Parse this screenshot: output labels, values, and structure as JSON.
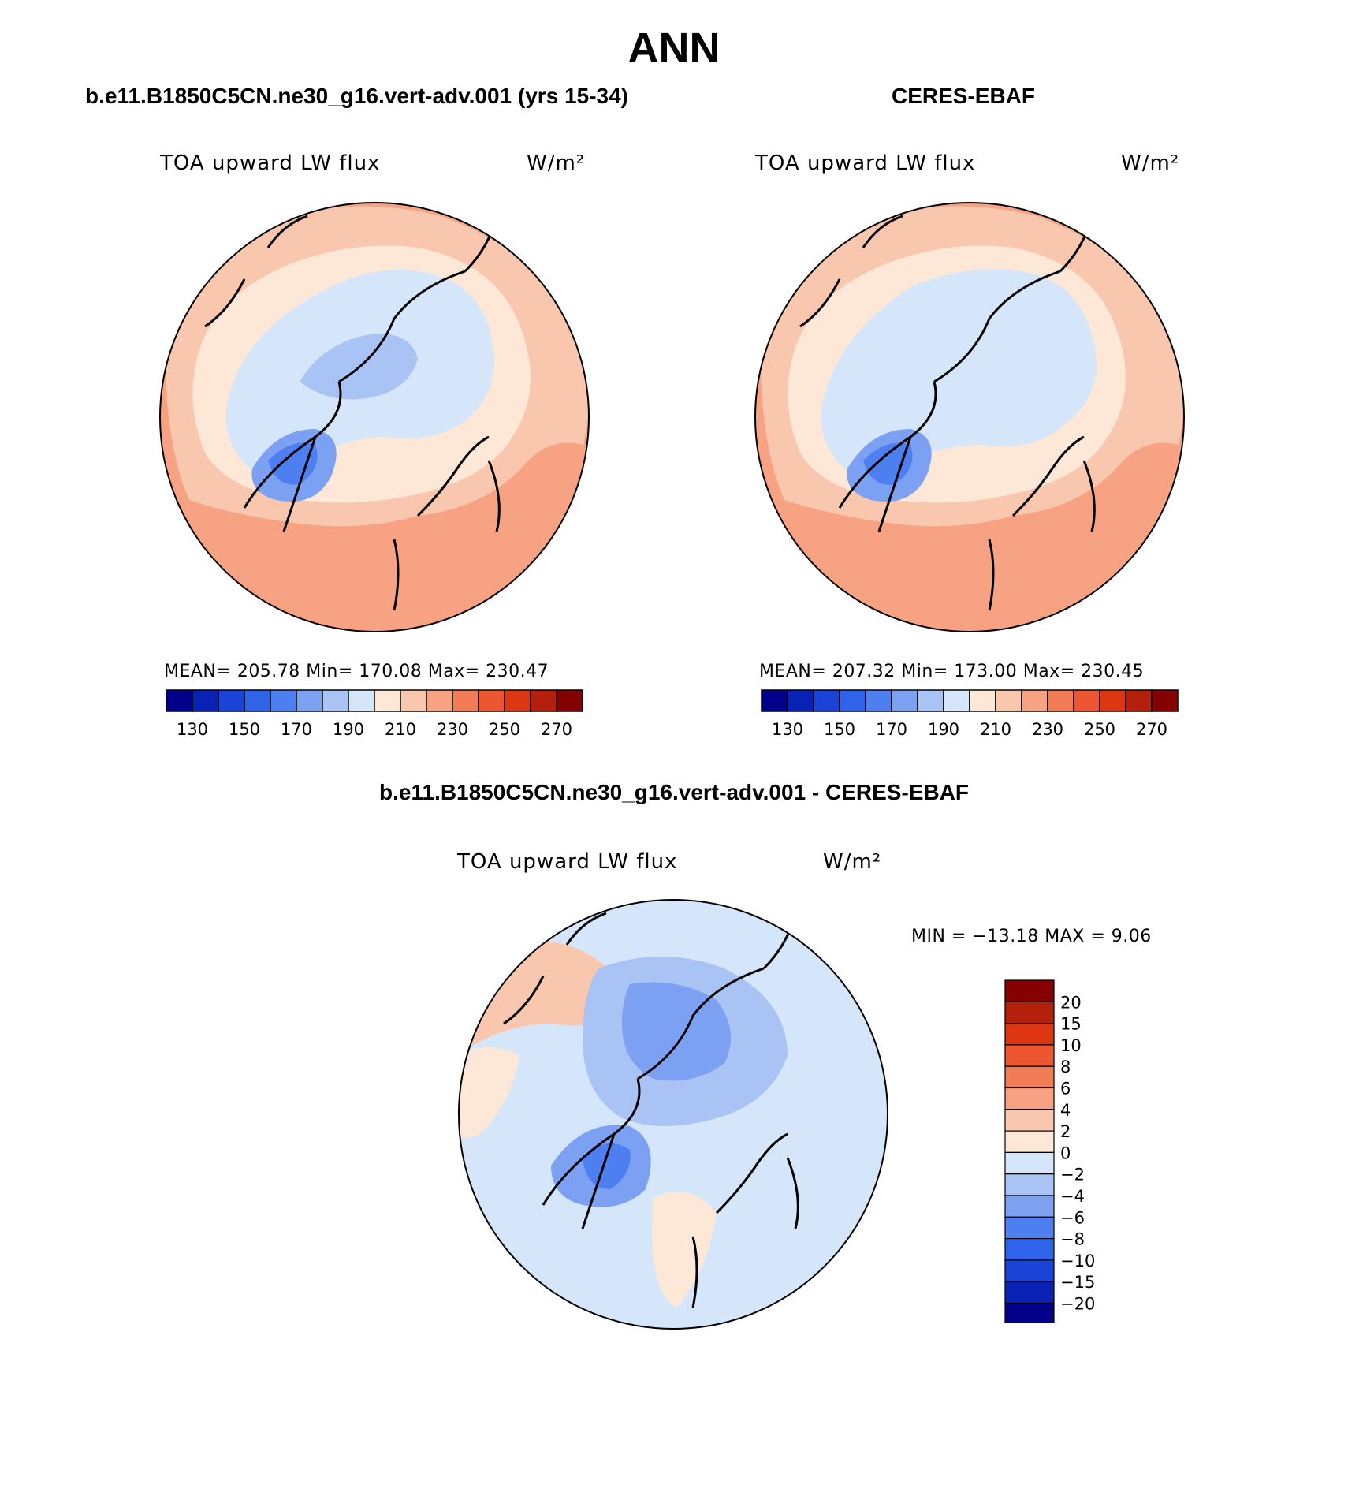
{
  "figure": {
    "title": "ANN",
    "panel_left_title": "b.e11.B1850C5CN.ne30_g16.vert-adv.001 (yrs 15-34)",
    "panel_right_title": "CERES-EBAF",
    "panel_diff_title": "b.e11.B1850C5CN.ne30_g16.vert-adv.001 - CERES-EBAF"
  },
  "panels": {
    "left": {
      "field": "TOA upward LW flux",
      "units": "W/m²",
      "mean": "205.78",
      "min": "170.08",
      "max": "230.47",
      "stats_text": "MEAN= 205.78   Min= 170.08   Max= 230.47"
    },
    "right": {
      "field": "TOA upward LW flux",
      "units": "W/m²",
      "mean": "207.32",
      "min": "173.00",
      "max": "230.45",
      "stats_text": "MEAN= 207.32   Min= 173.00   Max= 230.45"
    },
    "diff": {
      "field": "TOA upward LW flux",
      "units": "W/m²",
      "stats_text": "MIN = −13.18 MAX =    9.06"
    }
  },
  "colorbar_abs": {
    "colors": [
      "#00008b",
      "#0a21b5",
      "#1a44d8",
      "#2f63ea",
      "#4d7ff0",
      "#7da1f2",
      "#a9c3f5",
      "#d5e6fb",
      "#fde8d8",
      "#f9c7ae",
      "#f7a383",
      "#f27c55",
      "#ed5630",
      "#dc3613",
      "#b5200d",
      "#850000"
    ],
    "tick_labels": [
      "130",
      "150",
      "170",
      "190",
      "210",
      "230",
      "250",
      "270"
    ]
  },
  "colorbar_diff": {
    "colors": [
      "#00008b",
      "#0a21b5",
      "#1a44d8",
      "#2f63ea",
      "#4d7ff0",
      "#7da1f2",
      "#a9c3f5",
      "#d5e6fb",
      "#fde8d8",
      "#f9c7ae",
      "#f7a383",
      "#f27c55",
      "#ed5630",
      "#dc3613",
      "#b5200d",
      "#850000"
    ],
    "tick_labels": [
      "20",
      "15",
      "10",
      "8",
      "6",
      "4",
      "2",
      "0",
      "−2",
      "−4",
      "−6",
      "−8",
      "−10",
      "−15",
      "−20"
    ]
  },
  "map_colors": {
    "warm_light": "#fde8d8",
    "warm_mid": "#f9c7ae",
    "warm_strong": "#f7a383",
    "cool_light": "#d5e6fb",
    "cool_mid": "#a9c3f5",
    "cool_strong": "#7da1f2",
    "cool_deep": "#4d7ff0"
  }
}
